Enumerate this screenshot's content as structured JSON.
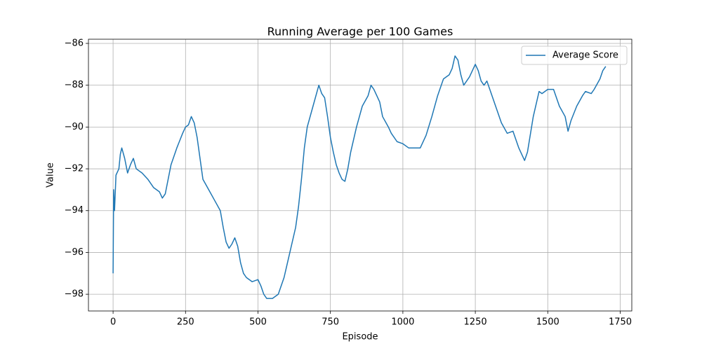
{
  "chart_data": {
    "type": "line",
    "title": "Running Average per 100 Games",
    "xlabel": "Episode",
    "ylabel": "Value",
    "x": [
      0,
      2,
      5,
      10,
      20,
      25,
      30,
      40,
      50,
      60,
      70,
      80,
      100,
      120,
      140,
      160,
      170,
      180,
      190,
      200,
      220,
      240,
      250,
      260,
      270,
      280,
      290,
      300,
      310,
      330,
      350,
      370,
      380,
      390,
      400,
      410,
      420,
      430,
      440,
      450,
      460,
      480,
      500,
      510,
      520,
      530,
      550,
      570,
      590,
      610,
      630,
      640,
      650,
      660,
      670,
      690,
      710,
      720,
      730,
      740,
      750,
      760,
      770,
      780,
      790,
      800,
      810,
      820,
      840,
      860,
      880,
      890,
      900,
      910,
      920,
      930,
      950,
      960,
      980,
      1000,
      1020,
      1040,
      1060,
      1080,
      1100,
      1120,
      1140,
      1160,
      1170,
      1180,
      1190,
      1200,
      1210,
      1230,
      1250,
      1260,
      1270,
      1280,
      1290,
      1300,
      1320,
      1340,
      1360,
      1380,
      1400,
      1410,
      1420,
      1430,
      1450,
      1470,
      1480,
      1500,
      1520,
      1540,
      1560,
      1570,
      1580,
      1600,
      1620,
      1630,
      1650,
      1660,
      1680,
      1690,
      1700
    ],
    "series": [
      {
        "name": "Average Score",
        "color": "#1f77b4",
        "values": [
          -97,
          -93,
          -94,
          -92.3,
          -92,
          -91.3,
          -91,
          -91.5,
          -92.2,
          -91.8,
          -91.5,
          -92,
          -92.2,
          -92.5,
          -92.9,
          -93.1,
          -93.4,
          -93.2,
          -92.5,
          -91.8,
          -91,
          -90.3,
          -90,
          -89.9,
          -89.5,
          -89.8,
          -90.5,
          -91.5,
          -92.5,
          -93,
          -93.5,
          -94,
          -94.8,
          -95.5,
          -95.8,
          -95.6,
          -95.3,
          -95.7,
          -96.5,
          -97,
          -97.2,
          -97.4,
          -97.3,
          -97.6,
          -98,
          -98.2,
          -98.2,
          -98,
          -97.2,
          -96,
          -94.8,
          -93.8,
          -92.5,
          -91,
          -90,
          -89,
          -88,
          -88.4,
          -88.6,
          -89.5,
          -90.5,
          -91.2,
          -91.8,
          -92.2,
          -92.5,
          -92.6,
          -92,
          -91.2,
          -90,
          -89,
          -88.5,
          -88,
          -88.2,
          -88.5,
          -88.8,
          -89.5,
          -90,
          -90.3,
          -90.7,
          -90.8,
          -91,
          -91,
          -91,
          -90.4,
          -89.5,
          -88.5,
          -87.7,
          -87.5,
          -87.2,
          -86.6,
          -86.8,
          -87.5,
          -88,
          -87.6,
          -87,
          -87.3,
          -87.8,
          -88,
          -87.8,
          -88.2,
          -89,
          -89.8,
          -90.3,
          -90.2,
          -91,
          -91.3,
          -91.6,
          -91.2,
          -89.5,
          -88.3,
          -88.4,
          -88.2,
          -88.2,
          -89,
          -89.5,
          -90.2,
          -89.7,
          -89,
          -88.5,
          -88.3,
          -88.4,
          -88.2,
          -87.7,
          -87.3,
          -87.1
        ]
      }
    ],
    "xlim": [
      -85,
      1790
    ],
    "ylim": [
      -98.8,
      -85.8
    ],
    "xticks": [
      0,
      250,
      500,
      750,
      1000,
      1250,
      1500,
      1750
    ],
    "yticks": [
      {
        "value": -98,
        "label": "−98"
      },
      {
        "value": -96,
        "label": "−96"
      },
      {
        "value": -94,
        "label": "−94"
      },
      {
        "value": -92,
        "label": "−92"
      },
      {
        "value": -90,
        "label": "−90"
      },
      {
        "value": -88,
        "label": "−88"
      },
      {
        "value": -86,
        "label": "−86"
      }
    ],
    "grid": true,
    "legend": "upper right"
  }
}
